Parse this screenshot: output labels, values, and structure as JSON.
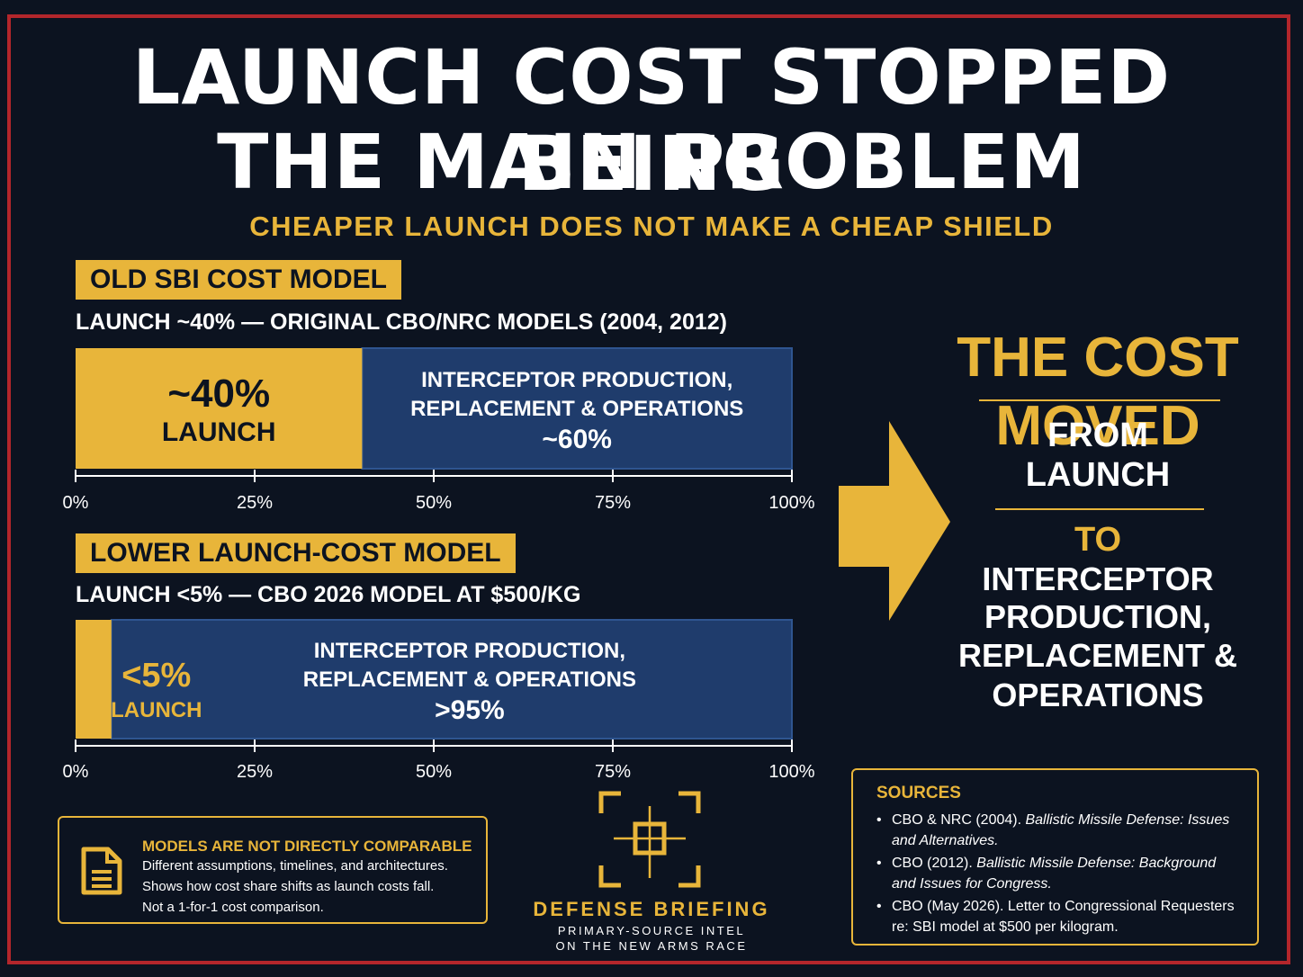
{
  "header": {
    "title_line1": "LAUNCH COST STOPPED BEING",
    "title_line2": "THE MAIN PROBLEM",
    "subtitle": "CHEAPER LAUNCH DOES NOT MAKE A CHEAP SHIELD"
  },
  "chart_data": [
    {
      "type": "bar",
      "orientation": "horizontal-stacked",
      "tag": "OLD SBI COST MODEL",
      "caption": "LAUNCH ~40% — ORIGINAL CBO/NRC MODELS (2004, 2012)",
      "segments": [
        {
          "name": "LAUNCH",
          "value": 40,
          "value_label": "~40%",
          "color": "#e8b53a"
        },
        {
          "name_lines": [
            "INTERCEPTOR PRODUCTION,",
            "REPLACEMENT & OPERATIONS"
          ],
          "value": 60,
          "value_label": "~60%",
          "color": "#1f3c6c"
        }
      ],
      "xlim": [
        0,
        100
      ],
      "ticks": [
        "0%",
        "25%",
        "50%",
        "75%",
        "100%"
      ]
    },
    {
      "type": "bar",
      "orientation": "horizontal-stacked",
      "tag": "LOWER LAUNCH-COST MODEL",
      "caption": "LAUNCH <5% — CBO 2026 MODEL AT $500/KG",
      "segments": [
        {
          "name": "LAUNCH",
          "value": 5,
          "value_label": "<5%",
          "color": "#e8b53a"
        },
        {
          "name_lines": [
            "INTERCEPTOR PRODUCTION,",
            "REPLACEMENT & OPERATIONS"
          ],
          "value": 95,
          "value_label": ">95%",
          "color": "#1f3c6c"
        }
      ],
      "xlim": [
        0,
        100
      ],
      "ticks": [
        "0%",
        "25%",
        "50%",
        "75%",
        "100%"
      ]
    }
  ],
  "right_panel": {
    "heading": "THE COST MOVED",
    "from_label": "FROM",
    "from_value": "LAUNCH",
    "to_label": "TO",
    "to_lines": [
      "INTERCEPTOR",
      "PRODUCTION,",
      "REPLACEMENT &",
      "OPERATIONS"
    ],
    "arrow_icon": "right-arrow-icon"
  },
  "note": {
    "icon": "document-icon",
    "heading": "MODELS ARE NOT DIRECTLY COMPARABLE",
    "lines": [
      "Different assumptions, timelines, and architectures.",
      "Shows how cost share shifts as launch costs fall.",
      "Not a 1-for-1 cost comparison."
    ]
  },
  "brand": {
    "logo_icon": "crosshair-logo-icon",
    "name": "DEFENSE BRIEFING",
    "tagline_line1": "PRIMARY-SOURCE INTEL",
    "tagline_line2": "ON THE NEW ARMS RACE"
  },
  "sources": {
    "heading": "SOURCES",
    "items": [
      {
        "prefix": "CBO & NRC (2004). ",
        "title": "Ballistic Missile Defense: Issues and Alternatives."
      },
      {
        "prefix": "CBO (2012). ",
        "title": "Ballistic Missile Defense: Background and Issues for Congress."
      },
      {
        "prefix": "CBO (May 2026). Letter to Congressional Requesters re: SBI model at $500 per kilogram.",
        "title": ""
      }
    ]
  },
  "colors": {
    "background": "#0c1320",
    "accent_gold": "#e8b53a",
    "bar_blue": "#1f3c6c",
    "frame_red": "#b3262b"
  }
}
